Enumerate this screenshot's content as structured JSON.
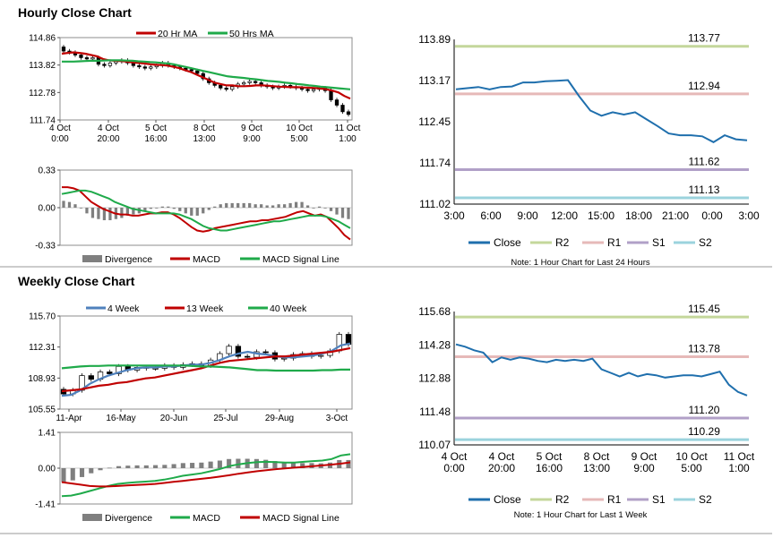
{
  "sections": {
    "hourly_title": "Hourly Close Chart",
    "weekly_title": "Weekly Close Chart"
  },
  "colors": {
    "ma_short": "#c00000",
    "ma_long": "#1faa4a",
    "ma_4week": "#4f81bd",
    "close": "#1f6fad",
    "r2": "#c4d79b",
    "r1": "#e6b9b8",
    "s1": "#b1a0c7",
    "s2": "#9bd3dd",
    "divergence": "#7f7f7f"
  },
  "chart_data": [
    {
      "id": "hourly_price",
      "type": "candlestick",
      "legend": [
        "20 Hr MA",
        "50 Hrs MA"
      ],
      "y_ticks": [
        "114.86",
        "113.82",
        "112.78",
        "111.74"
      ],
      "ylim": [
        111.74,
        114.86
      ],
      "x_ticks": [
        [
          "4 Oct",
          "0:00"
        ],
        [
          "4 Oct",
          "20:00"
        ],
        [
          "5 Oct",
          "16:00"
        ],
        [
          "8 Oct",
          "13:00"
        ],
        [
          "9 Oct",
          "9:00"
        ],
        [
          "10 Oct",
          "5:00"
        ],
        [
          "11 Oct",
          "1:00"
        ]
      ],
      "close": [
        114.35,
        114.3,
        114.2,
        114.1,
        114.05,
        114.1,
        113.85,
        113.8,
        113.9,
        113.95,
        114.0,
        113.9,
        113.8,
        113.75,
        113.7,
        113.75,
        113.8,
        113.9,
        113.8,
        113.75,
        113.7,
        113.65,
        113.6,
        113.5,
        113.3,
        113.15,
        113.05,
        112.95,
        112.9,
        113.0,
        113.1,
        113.15,
        113.2,
        113.15,
        113.05,
        113.0,
        112.95,
        113.0,
        113.05,
        113.0,
        112.95,
        112.9,
        112.85,
        112.9,
        112.95,
        112.85,
        112.5,
        112.3,
        112.05,
        111.95
      ],
      "ma20": [
        114.25,
        114.28,
        114.3,
        114.28,
        114.25,
        114.2,
        114.15,
        114.05,
        114.0,
        113.98,
        113.97,
        113.95,
        113.92,
        113.9,
        113.88,
        113.85,
        113.83,
        113.82,
        113.8,
        113.75,
        113.7,
        113.62,
        113.55,
        113.45,
        113.35,
        113.25,
        113.15,
        113.1,
        113.05,
        113.05,
        113.02,
        113.02,
        113.03,
        113.05,
        113.05,
        113.04,
        113.02,
        113.0,
        112.99,
        112.98,
        112.98,
        112.97,
        112.96,
        112.95,
        112.93,
        112.9,
        112.85,
        112.78,
        112.65,
        112.55
      ],
      "ma50": [
        113.95,
        113.95,
        113.95,
        113.96,
        113.97,
        113.98,
        113.98,
        113.99,
        114.0,
        114.0,
        114.0,
        113.99,
        113.98,
        113.96,
        113.95,
        113.93,
        113.92,
        113.9,
        113.88,
        113.85,
        113.8,
        113.75,
        113.7,
        113.65,
        113.6,
        113.55,
        113.5,
        113.45,
        113.4,
        113.37,
        113.35,
        113.33,
        113.3,
        113.28,
        113.25,
        113.22,
        113.2,
        113.18,
        113.15,
        113.13,
        113.1,
        113.08,
        113.05,
        113.03,
        113.0,
        112.98,
        112.96,
        112.94,
        112.92,
        112.9
      ]
    },
    {
      "id": "hourly_macd",
      "type": "macd",
      "legend": [
        "Divergence",
        "MACD",
        "MACD Signal Line"
      ],
      "y_ticks": [
        "0.33",
        "0.00",
        "-0.33"
      ],
      "ylim": [
        -0.33,
        0.33
      ],
      "macd": [
        0.18,
        0.18,
        0.17,
        0.15,
        0.1,
        0.05,
        0.02,
        -0.01,
        -0.03,
        -0.05,
        -0.06,
        -0.06,
        -0.07,
        -0.07,
        -0.06,
        -0.05,
        -0.05,
        -0.04,
        -0.04,
        -0.06,
        -0.09,
        -0.13,
        -0.17,
        -0.2,
        -0.21,
        -0.2,
        -0.18,
        -0.17,
        -0.16,
        -0.15,
        -0.14,
        -0.13,
        -0.12,
        -0.12,
        -0.11,
        -0.11,
        -0.1,
        -0.09,
        -0.08,
        -0.06,
        -0.04,
        -0.03,
        -0.05,
        -0.07,
        -0.06,
        -0.08,
        -0.13,
        -0.18,
        -0.24,
        -0.28
      ],
      "signal": [
        0.12,
        0.13,
        0.14,
        0.15,
        0.15,
        0.14,
        0.12,
        0.1,
        0.08,
        0.05,
        0.03,
        0.01,
        -0.01,
        -0.02,
        -0.03,
        -0.04,
        -0.05,
        -0.05,
        -0.05,
        -0.05,
        -0.06,
        -0.08,
        -0.1,
        -0.13,
        -0.16,
        -0.18,
        -0.19,
        -0.2,
        -0.2,
        -0.19,
        -0.18,
        -0.17,
        -0.16,
        -0.15,
        -0.14,
        -0.13,
        -0.12,
        -0.12,
        -0.11,
        -0.1,
        -0.09,
        -0.08,
        -0.07,
        -0.07,
        -0.07,
        -0.08,
        -0.1,
        -0.12,
        -0.15,
        -0.18
      ]
    },
    {
      "id": "hourly_levels",
      "type": "line",
      "y_ticks": [
        "113.89",
        "113.17",
        "112.45",
        "111.74",
        "111.02"
      ],
      "ylim": [
        111.02,
        113.89
      ],
      "x_ticks": [
        "3:00",
        "6:00",
        "9:00",
        "12:00",
        "15:00",
        "18:00",
        "21:00",
        "0:00",
        "3:00"
      ],
      "close": [
        113.02,
        113.04,
        113.06,
        113.02,
        113.06,
        113.07,
        113.14,
        113.14,
        113.16,
        113.17,
        113.18,
        112.9,
        112.65,
        112.56,
        112.62,
        112.58,
        112.62,
        112.5,
        112.38,
        112.25,
        112.22,
        112.22,
        112.2,
        112.1,
        112.22,
        112.15,
        112.13
      ],
      "levels": {
        "R2": 113.77,
        "R1": 112.94,
        "S1": 111.62,
        "S2": 111.13
      },
      "level_labels": [
        "113.77",
        "112.94",
        "111.62",
        "111.13"
      ],
      "legend": [
        "Close",
        "R2",
        "R1",
        "S1",
        "S2"
      ],
      "note": "Note: 1 Hour Chart for Last 24 Hours"
    },
    {
      "id": "weekly_price",
      "type": "candlestick",
      "legend": [
        "4 Week",
        "13 Week",
        "40 Week"
      ],
      "y_ticks": [
        "115.70",
        "112.31",
        "108.93",
        "105.55"
      ],
      "ylim": [
        105.55,
        115.7
      ],
      "x_ticks": [
        "11-Apr",
        "16-May",
        "20-Jun",
        "25-Jul",
        "29-Aug",
        "3-Oct"
      ],
      "close": [
        107.2,
        107.6,
        109.2,
        108.8,
        109.6,
        109.4,
        110.2,
        109.8,
        110.1,
        110.0,
        110.0,
        110.3,
        110.1,
        110.4,
        110.5,
        110.3,
        110.9,
        111.6,
        112.4,
        111.3,
        111.2,
        111.8,
        111.7,
        111.0,
        111.1,
        111.5,
        111.6,
        111.3,
        111.4,
        111.9,
        113.7,
        112.6
      ],
      "ma4": [
        107.0,
        107.1,
        107.6,
        108.3,
        108.8,
        109.2,
        109.5,
        109.8,
        110.0,
        110.1,
        110.1,
        110.2,
        110.2,
        110.3,
        110.4,
        110.4,
        110.6,
        110.9,
        111.3,
        111.6,
        111.8,
        111.6,
        111.5,
        111.3,
        111.2,
        111.2,
        111.3,
        111.4,
        111.6,
        111.9,
        112.5,
        112.7
      ],
      "ma13": [
        107.5,
        107.6,
        107.7,
        107.9,
        108.1,
        108.2,
        108.4,
        108.5,
        108.7,
        108.9,
        109.0,
        109.2,
        109.4,
        109.6,
        109.8,
        110.0,
        110.3,
        110.6,
        110.8,
        110.9,
        111.0,
        111.1,
        111.2,
        111.3,
        111.3,
        111.4,
        111.5,
        111.6,
        111.7,
        111.8,
        112.0,
        112.2
      ],
      "ma40": [
        110.0,
        110.1,
        110.2,
        110.25,
        110.25,
        110.3,
        110.3,
        110.3,
        110.3,
        110.3,
        110.3,
        110.3,
        110.3,
        110.3,
        110.25,
        110.2,
        110.2,
        110.15,
        110.1,
        110.0,
        109.9,
        109.8,
        109.8,
        109.75,
        109.75,
        109.75,
        109.75,
        109.75,
        109.8,
        109.8,
        109.85,
        109.85
      ]
    },
    {
      "id": "weekly_macd",
      "type": "macd",
      "legend": [
        "Divergence",
        "MACD",
        "MACD Signal Line"
      ],
      "y_ticks": [
        "1.41",
        "0.00",
        "-1.41"
      ],
      "ylim": [
        -1.41,
        1.41
      ],
      "macd": [
        -1.1,
        -1.08,
        -1.0,
        -0.9,
        -0.8,
        -0.7,
        -0.62,
        -0.58,
        -0.55,
        -0.53,
        -0.5,
        -0.45,
        -0.38,
        -0.3,
        -0.25,
        -0.2,
        -0.12,
        -0.03,
        0.08,
        0.15,
        0.2,
        0.24,
        0.25,
        0.24,
        0.22,
        0.22,
        0.25,
        0.28,
        0.3,
        0.36,
        0.5,
        0.55
      ],
      "signal": [
        -0.55,
        -0.6,
        -0.65,
        -0.7,
        -0.72,
        -0.72,
        -0.7,
        -0.68,
        -0.66,
        -0.64,
        -0.62,
        -0.58,
        -0.54,
        -0.5,
        -0.46,
        -0.42,
        -0.38,
        -0.33,
        -0.28,
        -0.22,
        -0.17,
        -0.12,
        -0.08,
        -0.04,
        -0.01,
        0.02,
        0.05,
        0.08,
        0.11,
        0.14,
        0.18,
        0.23
      ]
    },
    {
      "id": "weekly_levels",
      "type": "line",
      "y_ticks": [
        "115.68",
        "114.28",
        "112.88",
        "111.48",
        "110.07"
      ],
      "ylim": [
        110.07,
        115.68
      ],
      "x_ticks": [
        [
          "4 Oct",
          "0:00"
        ],
        [
          "4 Oct",
          "20:00"
        ],
        [
          "5 Oct",
          "16:00"
        ],
        [
          "8 Oct",
          "13:00"
        ],
        [
          "9 Oct",
          "9:00"
        ],
        [
          "10 Oct",
          "5:00"
        ],
        [
          "11 Oct",
          "1:00"
        ]
      ],
      "close": [
        114.3,
        114.2,
        114.05,
        113.95,
        113.55,
        113.75,
        113.65,
        113.75,
        113.7,
        113.6,
        113.55,
        113.65,
        113.6,
        113.65,
        113.6,
        113.7,
        113.25,
        113.1,
        112.95,
        113.1,
        112.95,
        113.05,
        113.0,
        112.9,
        112.95,
        113.0,
        113.0,
        112.95,
        113.05,
        113.15,
        112.6,
        112.3,
        112.15
      ],
      "levels": {
        "R2": 115.45,
        "R1": 113.78,
        "S1": 111.2,
        "S2": 110.29
      },
      "level_labels": [
        "115.45",
        "113.78",
        "111.20",
        "110.29"
      ],
      "legend": [
        "Close",
        "R2",
        "R1",
        "S1",
        "S2"
      ],
      "note": "Note: 1 Hour Chart for Last 1 Week"
    }
  ]
}
